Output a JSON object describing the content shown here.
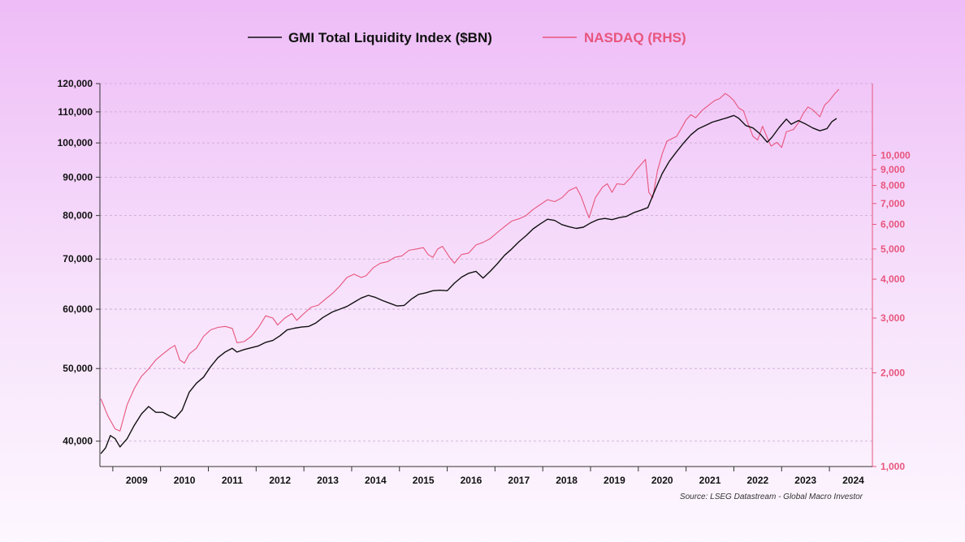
{
  "chart_data": {
    "type": "line",
    "legend": {
      "placement": "top-center"
    },
    "source_note": "Source: LSEG Datastream - Global Macro Investor",
    "colors": {
      "liquidity": "#111111",
      "nasdaq": "#e8557d",
      "grid": "#c7a6cf"
    },
    "grid": true,
    "x_axis": {
      "labels": [
        "2009",
        "2010",
        "2011",
        "2012",
        "2013",
        "2014",
        "2015",
        "2016",
        "2017",
        "2018",
        "2019",
        "2020",
        "2021",
        "2022",
        "2023",
        "2024"
      ],
      "range": [
        2008.73,
        2024.9
      ]
    },
    "y_left": {
      "scale": "log",
      "range": [
        37000,
        120000
      ],
      "ticks": [
        40000,
        50000,
        60000,
        70000,
        80000,
        90000,
        100000,
        110000,
        120000
      ],
      "tick_labels": [
        "40,000",
        "50,000",
        "60,000",
        "70,000",
        "80,000",
        "90,000",
        "100,000",
        "110,000",
        "120,000"
      ]
    },
    "y_right": {
      "scale": "log",
      "range": [
        1000,
        17000
      ],
      "ticks": [
        1000,
        2000,
        3000,
        4000,
        5000,
        6000,
        7000,
        8000,
        9000,
        10000
      ],
      "tick_labels": [
        "1,000",
        "2,000",
        "3,000",
        "4,000",
        "5,000",
        "6,000",
        "7,000",
        "8,000",
        "9,000",
        "10,000"
      ]
    },
    "series": [
      {
        "name": "GMI Total Liquidity Index ($BN)",
        "axis": "left",
        "points": [
          [
            2008.75,
            38500
          ],
          [
            2008.85,
            39200
          ],
          [
            2008.95,
            40700
          ],
          [
            2009.05,
            40300
          ],
          [
            2009.15,
            39300
          ],
          [
            2009.3,
            40300
          ],
          [
            2009.45,
            42000
          ],
          [
            2009.6,
            43500
          ],
          [
            2009.75,
            44500
          ],
          [
            2009.9,
            43700
          ],
          [
            2010.05,
            43700
          ],
          [
            2010.2,
            43200
          ],
          [
            2010.3,
            42900
          ],
          [
            2010.45,
            44000
          ],
          [
            2010.6,
            46500
          ],
          [
            2010.75,
            47800
          ],
          [
            2010.9,
            48700
          ],
          [
            2011.05,
            50300
          ],
          [
            2011.2,
            51700
          ],
          [
            2011.35,
            52600
          ],
          [
            2011.5,
            53200
          ],
          [
            2011.6,
            52600
          ],
          [
            2011.75,
            53000
          ],
          [
            2011.9,
            53300
          ],
          [
            2012.05,
            53600
          ],
          [
            2012.2,
            54200
          ],
          [
            2012.35,
            54500
          ],
          [
            2012.5,
            55300
          ],
          [
            2012.65,
            56300
          ],
          [
            2012.8,
            56600
          ],
          [
            2012.95,
            56800
          ],
          [
            2013.1,
            56900
          ],
          [
            2013.25,
            57500
          ],
          [
            2013.4,
            58500
          ],
          [
            2013.6,
            59500
          ],
          [
            2013.75,
            60000
          ],
          [
            2013.9,
            60500
          ],
          [
            2014.05,
            61300
          ],
          [
            2014.2,
            62100
          ],
          [
            2014.35,
            62600
          ],
          [
            2014.5,
            62200
          ],
          [
            2014.65,
            61600
          ],
          [
            2014.8,
            61100
          ],
          [
            2014.95,
            60600
          ],
          [
            2015.1,
            60700
          ],
          [
            2015.25,
            61900
          ],
          [
            2015.4,
            62800
          ],
          [
            2015.55,
            63100
          ],
          [
            2015.7,
            63500
          ],
          [
            2015.85,
            63600
          ],
          [
            2016.0,
            63500
          ],
          [
            2016.15,
            65000
          ],
          [
            2016.3,
            66200
          ],
          [
            2016.45,
            67000
          ],
          [
            2016.6,
            67400
          ],
          [
            2016.75,
            66000
          ],
          [
            2016.9,
            67400
          ],
          [
            2017.05,
            69000
          ],
          [
            2017.2,
            70800
          ],
          [
            2017.35,
            72200
          ],
          [
            2017.5,
            73800
          ],
          [
            2017.65,
            75200
          ],
          [
            2017.8,
            76800
          ],
          [
            2017.95,
            78000
          ],
          [
            2018.1,
            79100
          ],
          [
            2018.25,
            78800
          ],
          [
            2018.4,
            77800
          ],
          [
            2018.55,
            77300
          ],
          [
            2018.7,
            76900
          ],
          [
            2018.85,
            77200
          ],
          [
            2019.0,
            78200
          ],
          [
            2019.15,
            79000
          ],
          [
            2019.3,
            79300
          ],
          [
            2019.45,
            79000
          ],
          [
            2019.6,
            79500
          ],
          [
            2019.75,
            79800
          ],
          [
            2019.9,
            80700
          ],
          [
            2020.05,
            81300
          ],
          [
            2020.2,
            82000
          ],
          [
            2020.35,
            86500
          ],
          [
            2020.5,
            91000
          ],
          [
            2020.65,
            94500
          ],
          [
            2020.8,
            97300
          ],
          [
            2020.95,
            100000
          ],
          [
            2021.1,
            102500
          ],
          [
            2021.25,
            104400
          ],
          [
            2021.4,
            105500
          ],
          [
            2021.55,
            106600
          ],
          [
            2021.7,
            107300
          ],
          [
            2021.85,
            108000
          ],
          [
            2022.0,
            108800
          ],
          [
            2022.1,
            107900
          ],
          [
            2022.25,
            105500
          ],
          [
            2022.4,
            104700
          ],
          [
            2022.55,
            102800
          ],
          [
            2022.7,
            100200
          ],
          [
            2022.8,
            101800
          ],
          [
            2022.95,
            104900
          ],
          [
            2023.1,
            107600
          ],
          [
            2023.2,
            105900
          ],
          [
            2023.35,
            107100
          ],
          [
            2023.5,
            106000
          ],
          [
            2023.65,
            104700
          ],
          [
            2023.8,
            103800
          ],
          [
            2023.95,
            104500
          ],
          [
            2024.05,
            106700
          ],
          [
            2024.15,
            107800
          ]
        ]
      },
      {
        "name": "NASDAQ (RHS)",
        "axis": "right",
        "points": [
          [
            2008.75,
            1650
          ],
          [
            2008.9,
            1450
          ],
          [
            2009.05,
            1320
          ],
          [
            2009.15,
            1300
          ],
          [
            2009.3,
            1580
          ],
          [
            2009.45,
            1780
          ],
          [
            2009.6,
            1950
          ],
          [
            2009.75,
            2060
          ],
          [
            2009.9,
            2200
          ],
          [
            2010.05,
            2300
          ],
          [
            2010.2,
            2400
          ],
          [
            2010.3,
            2450
          ],
          [
            2010.4,
            2200
          ],
          [
            2010.5,
            2150
          ],
          [
            2010.6,
            2300
          ],
          [
            2010.75,
            2400
          ],
          [
            2010.9,
            2620
          ],
          [
            2011.05,
            2750
          ],
          [
            2011.2,
            2800
          ],
          [
            2011.35,
            2820
          ],
          [
            2011.5,
            2780
          ],
          [
            2011.6,
            2500
          ],
          [
            2011.75,
            2520
          ],
          [
            2011.9,
            2620
          ],
          [
            2012.05,
            2800
          ],
          [
            2012.2,
            3050
          ],
          [
            2012.35,
            3000
          ],
          [
            2012.45,
            2850
          ],
          [
            2012.6,
            3000
          ],
          [
            2012.75,
            3100
          ],
          [
            2012.85,
            2950
          ],
          [
            2013.0,
            3100
          ],
          [
            2013.15,
            3250
          ],
          [
            2013.3,
            3300
          ],
          [
            2013.45,
            3450
          ],
          [
            2013.6,
            3600
          ],
          [
            2013.75,
            3800
          ],
          [
            2013.9,
            4050
          ],
          [
            2014.05,
            4150
          ],
          [
            2014.2,
            4050
          ],
          [
            2014.3,
            4100
          ],
          [
            2014.45,
            4350
          ],
          [
            2014.6,
            4500
          ],
          [
            2014.75,
            4550
          ],
          [
            2014.9,
            4700
          ],
          [
            2015.05,
            4750
          ],
          [
            2015.2,
            4950
          ],
          [
            2015.35,
            5000
          ],
          [
            2015.5,
            5050
          ],
          [
            2015.6,
            4800
          ],
          [
            2015.7,
            4700
          ],
          [
            2015.8,
            5000
          ],
          [
            2015.9,
            5100
          ],
          [
            2016.05,
            4700
          ],
          [
            2016.15,
            4500
          ],
          [
            2016.3,
            4800
          ],
          [
            2016.45,
            4850
          ],
          [
            2016.6,
            5150
          ],
          [
            2016.75,
            5250
          ],
          [
            2016.9,
            5400
          ],
          [
            2017.05,
            5650
          ],
          [
            2017.2,
            5900
          ],
          [
            2017.35,
            6150
          ],
          [
            2017.5,
            6250
          ],
          [
            2017.65,
            6400
          ],
          [
            2017.8,
            6700
          ],
          [
            2017.95,
            6950
          ],
          [
            2018.1,
            7200
          ],
          [
            2018.25,
            7100
          ],
          [
            2018.4,
            7300
          ],
          [
            2018.55,
            7700
          ],
          [
            2018.7,
            7900
          ],
          [
            2018.8,
            7400
          ],
          [
            2018.9,
            6700
          ],
          [
            2018.97,
            6300
          ],
          [
            2019.1,
            7300
          ],
          [
            2019.25,
            7900
          ],
          [
            2019.35,
            8100
          ],
          [
            2019.45,
            7600
          ],
          [
            2019.55,
            8100
          ],
          [
            2019.7,
            8050
          ],
          [
            2019.85,
            8500
          ],
          [
            2019.95,
            8950
          ],
          [
            2020.1,
            9500
          ],
          [
            2020.15,
            9700
          ],
          [
            2020.22,
            7600
          ],
          [
            2020.3,
            7300
          ],
          [
            2020.4,
            8900
          ],
          [
            2020.5,
            10100
          ],
          [
            2020.6,
            11100
          ],
          [
            2020.7,
            11300
          ],
          [
            2020.8,
            11500
          ],
          [
            2020.9,
            12200
          ],
          [
            2021.0,
            13000
          ],
          [
            2021.1,
            13500
          ],
          [
            2021.2,
            13200
          ],
          [
            2021.35,
            14000
          ],
          [
            2021.5,
            14600
          ],
          [
            2021.6,
            15000
          ],
          [
            2021.7,
            15200
          ],
          [
            2021.82,
            15800
          ],
          [
            2021.9,
            15500
          ],
          [
            2022.0,
            15000
          ],
          [
            2022.1,
            14200
          ],
          [
            2022.2,
            13900
          ],
          [
            2022.3,
            12600
          ],
          [
            2022.4,
            11500
          ],
          [
            2022.5,
            11200
          ],
          [
            2022.6,
            12400
          ],
          [
            2022.7,
            11400
          ],
          [
            2022.78,
            10700
          ],
          [
            2022.9,
            11000
          ],
          [
            2023.0,
            10600
          ],
          [
            2023.1,
            11900
          ],
          [
            2023.25,
            12100
          ],
          [
            2023.35,
            12700
          ],
          [
            2023.45,
            13600
          ],
          [
            2023.55,
            14300
          ],
          [
            2023.65,
            14000
          ],
          [
            2023.8,
            13300
          ],
          [
            2023.9,
            14500
          ],
          [
            2024.0,
            15000
          ],
          [
            2024.1,
            15700
          ],
          [
            2024.2,
            16300
          ]
        ]
      }
    ]
  }
}
